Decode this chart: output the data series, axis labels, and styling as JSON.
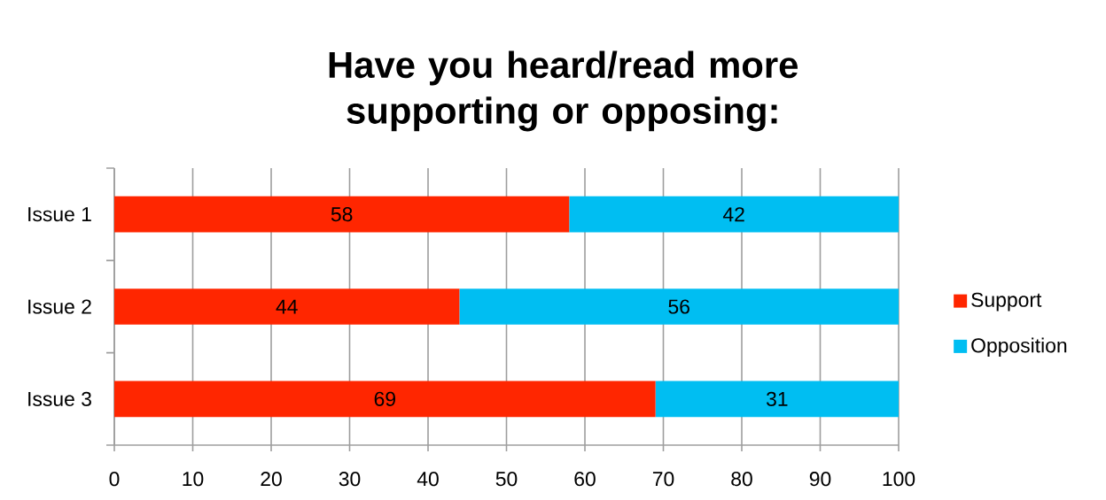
{
  "chart_data": {
    "type": "bar",
    "orientation": "horizontal",
    "stacked": true,
    "title": "Have you heard/read more supporting or opposing:",
    "categories": [
      "Issue 1",
      "Issue 2",
      "Issue 3"
    ],
    "series": [
      {
        "name": "Support",
        "color": "#ff2600",
        "values": [
          58,
          44,
          69
        ]
      },
      {
        "name": "Opposition",
        "color": "#00bef2",
        "values": [
          42,
          56,
          31
        ]
      }
    ],
    "xlim": [
      0,
      100
    ],
    "xticks": [
      0,
      10,
      20,
      30,
      40,
      50,
      60,
      70,
      80,
      90,
      100
    ],
    "grid": "x",
    "legend": "right",
    "data_labels": true
  }
}
